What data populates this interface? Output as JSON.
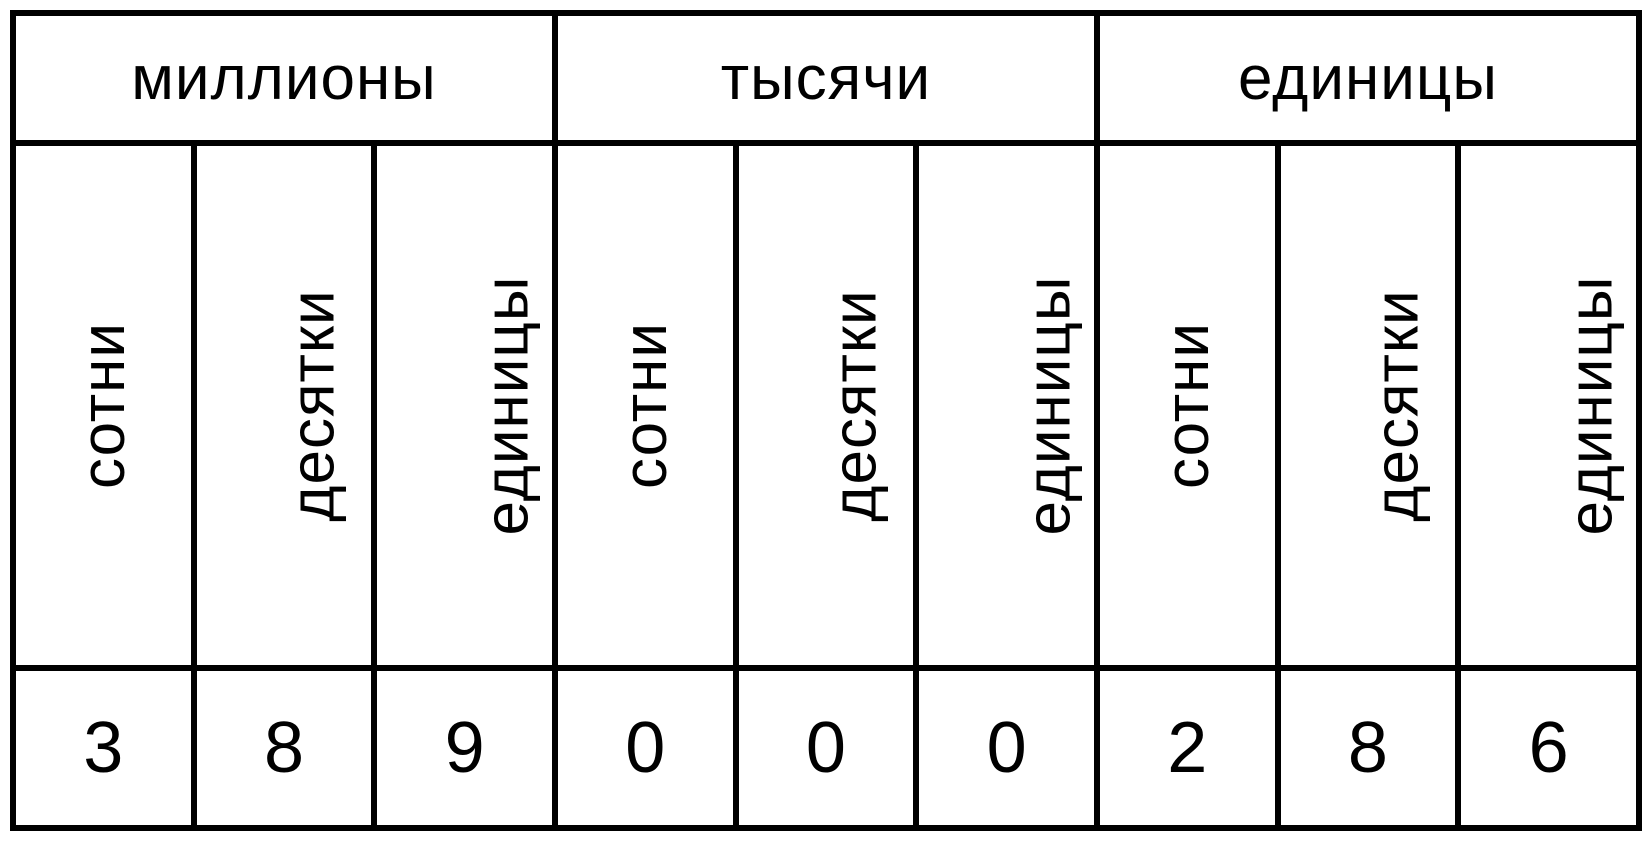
{
  "table": {
    "type": "table",
    "groups": [
      {
        "label": "миллионы"
      },
      {
        "label": "тысячи"
      },
      {
        "label": "единицы"
      }
    ],
    "sub_labels": [
      "сотни",
      "десятки",
      "единицы",
      "сотни",
      "десятки",
      "единицы",
      "сотни",
      "десятки",
      "единицы"
    ],
    "digits": [
      "3",
      "8",
      "9",
      "0",
      "0",
      "0",
      "2",
      "8",
      "6"
    ],
    "border_color": "#000000",
    "background_color": "#ffffff",
    "text_color": "#000000",
    "group_header_fontsize": 62,
    "sub_header_fontsize": 62,
    "digit_fontsize": 72,
    "border_width": 6,
    "columns": 9,
    "group_span": 3
  }
}
